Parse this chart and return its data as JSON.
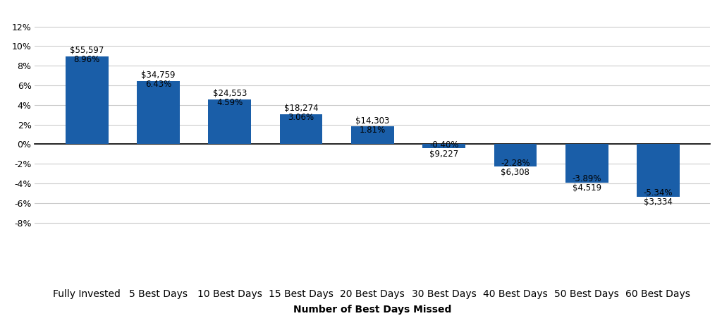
{
  "categories": [
    "Fully Invested",
    "5 Best Days",
    "10 Best Days",
    "15 Best Days",
    "20 Best Days",
    "30 Best Days",
    "40 Best Days",
    "50 Best Days",
    "60 Best Days"
  ],
  "values": [
    8.96,
    6.43,
    4.59,
    3.06,
    1.81,
    -0.4,
    -2.28,
    -3.89,
    -5.34
  ],
  "dollar_labels": [
    "$55,597",
    "$34,759",
    "$24,553",
    "$18,274",
    "$14,303",
    "$9,227",
    "$6,308",
    "$4,519",
    "$3,334"
  ],
  "pct_labels": [
    "8.96%",
    "6.43%",
    "4.59%",
    "3.06%",
    "1.81%",
    "-0.40%",
    "-2.28%",
    "-3.89%",
    "-5.34%"
  ],
  "bar_color": "#1a5ea8",
  "xlabel": "Number of Best Days Missed",
  "xlabel_fontsize": 10,
  "ytick_fontsize": 9,
  "xtick_fontsize": 9,
  "annotation_fontsize": 8.5,
  "ylim": [
    -8.5,
    13.5
  ],
  "yticks": [
    -8,
    -6,
    -4,
    -2,
    0,
    2,
    4,
    6,
    8,
    10,
    12
  ],
  "background_color": "#ffffff",
  "grid_color": "#cccccc"
}
